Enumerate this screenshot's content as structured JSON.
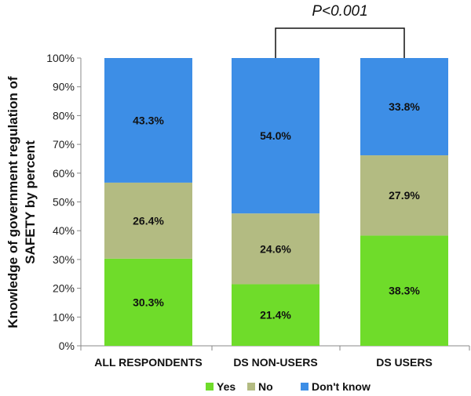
{
  "chart_data": {
    "type": "bar",
    "stacked": true,
    "categories": [
      "ALL RESPONDENTS",
      "DS NON-USERS",
      "DS USERS"
    ],
    "series": [
      {
        "name": "Yes",
        "values": [
          30.3,
          21.4,
          38.3
        ],
        "labels": [
          "30.3%",
          "21.4%",
          "38.3%"
        ],
        "color": "#6fdc2a"
      },
      {
        "name": "No",
        "values": [
          26.4,
          24.6,
          27.9
        ],
        "labels": [
          "26.4%",
          "24.6%",
          "27.9%"
        ],
        "color": "#b3bb82"
      },
      {
        "name": "Don't know",
        "values": [
          43.3,
          54.0,
          33.8
        ],
        "labels": [
          "43.3%",
          "54.0%",
          "33.8%"
        ],
        "color": "#3d8ee6"
      }
    ],
    "ylabel_lines": [
      "Knowledge of government regulation of",
      "SAFETY by percent"
    ],
    "ylim": [
      0,
      100
    ],
    "yticks": [
      "0%",
      "10%",
      "20%",
      "30%",
      "40%",
      "50%",
      "60%",
      "70%",
      "80%",
      "90%",
      "100%"
    ],
    "grid": false,
    "legend_position": "bottom",
    "annotation": {
      "text": "P<0.001",
      "between": [
        "DS NON-USERS",
        "DS USERS"
      ]
    }
  }
}
